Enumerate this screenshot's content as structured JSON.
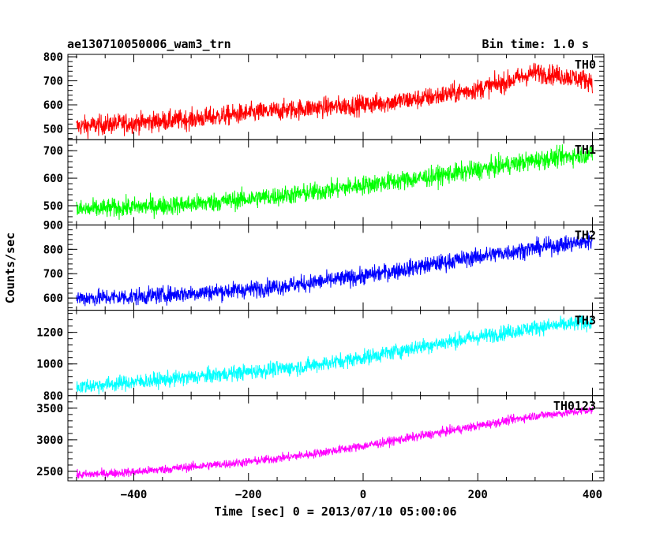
{
  "header": {
    "left": "ae130710050006_wam3_trn",
    "right": "Bin time: 1.0 s"
  },
  "chart_data": {
    "type": "line",
    "title": "ae130710050006_wam3_trn",
    "subtitle": "Bin time: 1.0 s",
    "xlabel": "Time [sec] 0 = 2013/07/10 05:00:06",
    "ylabel": "Counts/sec",
    "xlim": [
      -515,
      420
    ],
    "x_ticks": [
      -400,
      -200,
      0,
      200,
      400
    ],
    "x_tick_labels": [
      "−400",
      "−200",
      "0",
      "200",
      "400"
    ],
    "x_range": [
      -500,
      400
    ],
    "grid": false,
    "panels": [
      {
        "name": "TH0",
        "color": "#ff0000",
        "ylim": [
          455,
          810
        ],
        "y_ticks": [
          500,
          600,
          700,
          800
        ],
        "y_tick_labels": [
          "500",
          "600",
          "700",
          "800"
        ],
        "trend": [
          [
            -500,
            510
          ],
          [
            -400,
            525
          ],
          [
            -300,
            540
          ],
          [
            -200,
            565
          ],
          [
            -100,
            585
          ],
          [
            0,
            600
          ],
          [
            100,
            625
          ],
          [
            200,
            665
          ],
          [
            250,
            695
          ],
          [
            300,
            735
          ],
          [
            350,
            720
          ],
          [
            400,
            700
          ]
        ],
        "noise": 30
      },
      {
        "name": "TH1",
        "color": "#00ff00",
        "ylim": [
          430,
          740
        ],
        "y_ticks": [
          500,
          600,
          700
        ],
        "y_tick_labels": [
          "500",
          "600",
          "700"
        ],
        "trend": [
          [
            -500,
            485
          ],
          [
            -400,
            495
          ],
          [
            -300,
            505
          ],
          [
            -200,
            525
          ],
          [
            -100,
            545
          ],
          [
            0,
            575
          ],
          [
            100,
            600
          ],
          [
            200,
            630
          ],
          [
            300,
            665
          ],
          [
            400,
            690
          ]
        ],
        "noise": 25
      },
      {
        "name": "TH2",
        "color": "#0000ff",
        "ylim": [
          550,
          900
        ],
        "y_ticks": [
          600,
          700,
          800,
          900
        ],
        "y_tick_labels": [
          "600",
          "700",
          "800",
          "900"
        ],
        "trend": [
          [
            -500,
            600
          ],
          [
            -400,
            605
          ],
          [
            -300,
            620
          ],
          [
            -200,
            635
          ],
          [
            -100,
            660
          ],
          [
            0,
            690
          ],
          [
            100,
            730
          ],
          [
            200,
            770
          ],
          [
            300,
            805
          ],
          [
            400,
            835
          ]
        ],
        "noise": 25
      },
      {
        "name": "TH3",
        "color": "#00ffff",
        "ylim": [
          800,
          1340
        ],
        "y_ticks": [
          800,
          1000,
          1200
        ],
        "y_tick_labels": [
          "800",
          "1000",
          "1200"
        ],
        "trend": [
          [
            -500,
            855
          ],
          [
            -400,
            885
          ],
          [
            -300,
            915
          ],
          [
            -200,
            950
          ],
          [
            -100,
            985
          ],
          [
            0,
            1040
          ],
          [
            100,
            1110
          ],
          [
            200,
            1170
          ],
          [
            300,
            1230
          ],
          [
            400,
            1265
          ]
        ],
        "noise": 35
      },
      {
        "name": "TH0123",
        "color": "#ff00ff",
        "ylim": [
          2350,
          3700
        ],
        "y_ticks": [
          2500,
          3000,
          3500
        ],
        "y_tick_labels": [
          "2500",
          "3000",
          "3500"
        ],
        "trend": [
          [
            -500,
            2440
          ],
          [
            -400,
            2490
          ],
          [
            -300,
            2570
          ],
          [
            -200,
            2650
          ],
          [
            -100,
            2760
          ],
          [
            0,
            2900
          ],
          [
            100,
            3060
          ],
          [
            200,
            3220
          ],
          [
            300,
            3380
          ],
          [
            400,
            3470
          ]
        ],
        "noise": 50
      }
    ]
  }
}
